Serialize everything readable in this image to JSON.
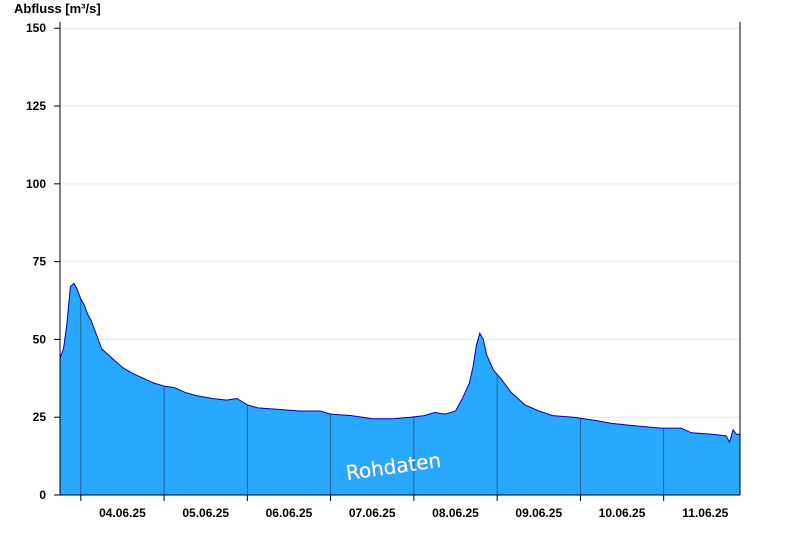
{
  "chart_data": {
    "type": "area",
    "ylabel": "Abfluss [m³/s]",
    "ylim": [
      0,
      152
    ],
    "yticks": [
      0,
      25,
      50,
      75,
      100,
      125,
      150
    ],
    "grid": true,
    "x_day_labels": [
      "04.06.25",
      "05.06.25",
      "06.06.25",
      "07.06.25",
      "08.06.25",
      "09.06.25",
      "10.06.25",
      "11.06.25"
    ],
    "x_start": "03.06.25 18:00",
    "x_end": "11.06.25 22:00",
    "annotation": "Rohdaten",
    "colors": {
      "fill": "#29a8ff",
      "line": "#0000b0",
      "axis": "#000000",
      "grid": "#e6e6e6"
    },
    "series": [
      {
        "points": [
          [
            "03.06.25 18:00",
            44
          ],
          [
            "03.06.25 19:00",
            47
          ],
          [
            "03.06.25 20:00",
            55
          ],
          [
            "03.06.25 21:00",
            67
          ],
          [
            "03.06.25 22:00",
            68
          ],
          [
            "03.06.25 23:00",
            66
          ],
          [
            "04.06.25 00:00",
            63
          ],
          [
            "04.06.25 01:00",
            61
          ],
          [
            "04.06.25 02:00",
            58
          ],
          [
            "04.06.25 03:00",
            56
          ],
          [
            "04.06.25 04:00",
            53
          ],
          [
            "04.06.25 05:00",
            50
          ],
          [
            "04.06.25 06:00",
            47
          ],
          [
            "04.06.25 07:00",
            46
          ],
          [
            "04.06.25 09:00",
            44
          ],
          [
            "04.06.25 12:00",
            41
          ],
          [
            "04.06.25 15:00",
            39
          ],
          [
            "04.06.25 18:00",
            37.5
          ],
          [
            "04.06.25 21:00",
            36
          ],
          [
            "05.06.25 00:00",
            35
          ],
          [
            "05.06.25 03:00",
            34.5
          ],
          [
            "05.06.25 06:00",
            33
          ],
          [
            "05.06.25 09:00",
            32
          ],
          [
            "05.06.25 14:00",
            31
          ],
          [
            "05.06.25 18:00",
            30.5
          ],
          [
            "05.06.25 21:00",
            31
          ],
          [
            "06.06.25 00:00",
            29
          ],
          [
            "06.06.25 03:00",
            28
          ],
          [
            "06.06.25 09:00",
            27.5
          ],
          [
            "06.06.25 15:00",
            27
          ],
          [
            "06.06.25 21:00",
            27
          ],
          [
            "07.06.25 00:00",
            26
          ],
          [
            "07.06.25 06:00",
            25.5
          ],
          [
            "07.06.25 12:00",
            24.5
          ],
          [
            "07.06.25 18:00",
            24.5
          ],
          [
            "07.06.25 23:00",
            25
          ],
          [
            "08.06.25 03:00",
            25.5
          ],
          [
            "08.06.25 06:00",
            26.5
          ],
          [
            "08.06.25 09:00",
            26
          ],
          [
            "08.06.25 12:00",
            27
          ],
          [
            "08.06.25 14:00",
            31
          ],
          [
            "08.06.25 16:00",
            36
          ],
          [
            "08.06.25 17:00",
            41
          ],
          [
            "08.06.25 18:00",
            48
          ],
          [
            "08.06.25 19:00",
            52
          ],
          [
            "08.06.25 20:00",
            50
          ],
          [
            "08.06.25 21:00",
            45
          ],
          [
            "08.06.25 23:00",
            40
          ],
          [
            "09.06.25 01:00",
            37.5
          ],
          [
            "09.06.25 04:00",
            33
          ],
          [
            "09.06.25 08:00",
            29
          ],
          [
            "09.06.25 12:00",
            27
          ],
          [
            "09.06.25 16:00",
            25.5
          ],
          [
            "09.06.25 22:00",
            25
          ],
          [
            "10.06.25 04:00",
            24
          ],
          [
            "10.06.25 09:00",
            23
          ],
          [
            "10.06.25 18:00",
            22
          ],
          [
            "10.06.25 23:00",
            21.5
          ],
          [
            "11.06.25 05:00",
            21.5
          ],
          [
            "11.06.25 08:00",
            20
          ],
          [
            "11.06.25 14:00",
            19.5
          ],
          [
            "11.06.25 18:00",
            19
          ],
          [
            "11.06.25 19:00",
            17
          ],
          [
            "11.06.25 20:00",
            21
          ],
          [
            "11.06.25 21:00",
            19.5
          ],
          [
            "11.06.25 22:00",
            19.5
          ]
        ]
      }
    ]
  }
}
